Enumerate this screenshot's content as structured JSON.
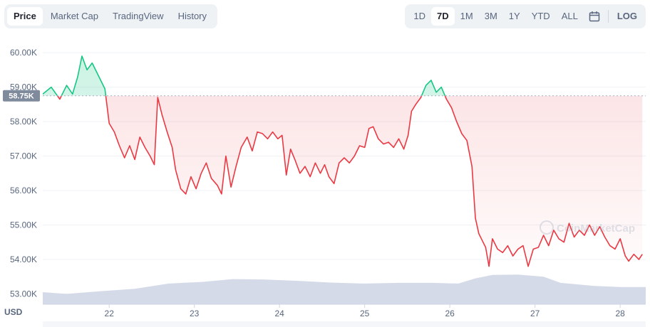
{
  "tabs": [
    "Price",
    "Market Cap",
    "TradingView",
    "History"
  ],
  "active_tab": "Price",
  "ranges": [
    "1D",
    "7D",
    "1M",
    "3M",
    "1Y",
    "YTD",
    "ALL"
  ],
  "active_range": "7D",
  "calendar_icon": "calendar-icon",
  "log_label": "LOG",
  "currency_label": "USD",
  "watermark": "CoinMarketCap",
  "colors": {
    "up": "#16c784",
    "down": "#ea3943",
    "volume": "#cfd6e4",
    "grid": "#eff2f5",
    "text": "#58667e"
  },
  "chart_data": {
    "type": "line",
    "ylim": [
      52700,
      60600
    ],
    "y_ticks": [
      {
        "value": 60000,
        "label": "60.00K"
      },
      {
        "value": 59000,
        "label": "59.00K"
      },
      {
        "value": 58000,
        "label": "58.00K"
      },
      {
        "value": 57000,
        "label": "57.00K"
      },
      {
        "value": 56000,
        "label": "56.00K"
      },
      {
        "value": 55000,
        "label": "55.00K"
      },
      {
        "value": 54000,
        "label": "54.00K"
      },
      {
        "value": 53000,
        "label": "53.00K"
      }
    ],
    "x_ticks": [
      {
        "value": 22,
        "label": "22"
      },
      {
        "value": 23,
        "label": "23"
      },
      {
        "value": 24,
        "label": "24"
      },
      {
        "value": 25,
        "label": "25"
      },
      {
        "value": 26,
        "label": "26"
      },
      {
        "value": 27,
        "label": "27"
      },
      {
        "value": 28,
        "label": "28"
      }
    ],
    "xlim": [
      21.22,
      28.3
    ],
    "reference_value": 58750,
    "reference_label": "58.75K",
    "price": [
      [
        21.22,
        58800
      ],
      [
        21.32,
        59000
      ],
      [
        21.42,
        58650
      ],
      [
        21.5,
        59050
      ],
      [
        21.57,
        58800
      ],
      [
        21.63,
        59300
      ],
      [
        21.68,
        59900
      ],
      [
        21.74,
        59500
      ],
      [
        21.8,
        59700
      ],
      [
        21.87,
        59350
      ],
      [
        21.95,
        58950
      ],
      [
        22.0,
        57950
      ],
      [
        22.06,
        57700
      ],
      [
        22.12,
        57300
      ],
      [
        22.18,
        56950
      ],
      [
        22.24,
        57300
      ],
      [
        22.3,
        56900
      ],
      [
        22.36,
        57550
      ],
      [
        22.42,
        57250
      ],
      [
        22.48,
        57000
      ],
      [
        22.53,
        56750
      ],
      [
        22.57,
        58700
      ],
      [
        22.62,
        58200
      ],
      [
        22.68,
        57700
      ],
      [
        22.74,
        57250
      ],
      [
        22.78,
        56600
      ],
      [
        22.84,
        56050
      ],
      [
        22.9,
        55900
      ],
      [
        22.96,
        56400
      ],
      [
        23.02,
        56050
      ],
      [
        23.08,
        56500
      ],
      [
        23.14,
        56800
      ],
      [
        23.2,
        56350
      ],
      [
        23.27,
        56150
      ],
      [
        23.32,
        55900
      ],
      [
        23.37,
        57000
      ],
      [
        23.43,
        56100
      ],
      [
        23.49,
        56700
      ],
      [
        23.55,
        57250
      ],
      [
        23.62,
        57550
      ],
      [
        23.68,
        57150
      ],
      [
        23.74,
        57700
      ],
      [
        23.8,
        57650
      ],
      [
        23.86,
        57500
      ],
      [
        23.92,
        57700
      ],
      [
        23.98,
        57500
      ],
      [
        24.03,
        57600
      ],
      [
        24.08,
        56450
      ],
      [
        24.13,
        57200
      ],
      [
        24.18,
        56900
      ],
      [
        24.24,
        56500
      ],
      [
        24.3,
        56700
      ],
      [
        24.36,
        56400
      ],
      [
        24.42,
        56800
      ],
      [
        24.48,
        56500
      ],
      [
        24.53,
        56750
      ],
      [
        24.58,
        56400
      ],
      [
        24.64,
        56200
      ],
      [
        24.7,
        56800
      ],
      [
        24.76,
        56950
      ],
      [
        24.82,
        56800
      ],
      [
        24.88,
        57000
      ],
      [
        24.94,
        57300
      ],
      [
        25.0,
        57250
      ],
      [
        25.05,
        57800
      ],
      [
        25.1,
        57850
      ],
      [
        25.16,
        57500
      ],
      [
        25.22,
        57350
      ],
      [
        25.28,
        57400
      ],
      [
        25.34,
        57250
      ],
      [
        25.4,
        57500
      ],
      [
        25.46,
        57200
      ],
      [
        25.51,
        57600
      ],
      [
        25.55,
        58300
      ],
      [
        25.6,
        58500
      ],
      [
        25.66,
        58700
      ],
      [
        25.72,
        59050
      ],
      [
        25.78,
        59200
      ],
      [
        25.84,
        58850
      ],
      [
        25.9,
        59000
      ],
      [
        25.96,
        58650
      ],
      [
        26.02,
        58400
      ],
      [
        26.08,
        58000
      ],
      [
        26.14,
        57650
      ],
      [
        26.2,
        57450
      ],
      [
        26.26,
        56700
      ],
      [
        26.3,
        55200
      ],
      [
        26.34,
        54750
      ],
      [
        26.38,
        54550
      ],
      [
        26.42,
        54350
      ],
      [
        26.46,
        53800
      ],
      [
        26.5,
        54600
      ],
      [
        26.56,
        54300
      ],
      [
        26.62,
        54200
      ],
      [
        26.68,
        54400
      ],
      [
        26.74,
        54100
      ],
      [
        26.8,
        54300
      ],
      [
        26.86,
        54400
      ],
      [
        26.92,
        53800
      ],
      [
        26.98,
        54300
      ],
      [
        27.04,
        54350
      ],
      [
        27.1,
        54700
      ],
      [
        27.16,
        54400
      ],
      [
        27.22,
        54850
      ],
      [
        27.28,
        54600
      ],
      [
        27.34,
        54500
      ],
      [
        27.4,
        55050
      ],
      [
        27.46,
        54650
      ],
      [
        27.52,
        54850
      ],
      [
        27.58,
        54700
      ],
      [
        27.64,
        55000
      ],
      [
        27.7,
        54700
      ],
      [
        27.76,
        54950
      ],
      [
        27.82,
        54650
      ],
      [
        27.88,
        54400
      ],
      [
        27.94,
        54300
      ],
      [
        28.0,
        54600
      ],
      [
        28.06,
        54100
      ],
      [
        28.1,
        53950
      ],
      [
        28.16,
        54150
      ],
      [
        28.22,
        54000
      ],
      [
        28.26,
        54150
      ]
    ],
    "volume": [
      [
        21.22,
        53050
      ],
      [
        21.5,
        53000
      ],
      [
        21.9,
        53080
      ],
      [
        22.3,
        53150
      ],
      [
        22.7,
        53300
      ],
      [
        23.1,
        53350
      ],
      [
        23.45,
        53430
      ],
      [
        23.8,
        53420
      ],
      [
        24.2,
        53380
      ],
      [
        24.6,
        53330
      ],
      [
        25.0,
        53300
      ],
      [
        25.4,
        53320
      ],
      [
        25.8,
        53320
      ],
      [
        26.1,
        53300
      ],
      [
        26.3,
        53450
      ],
      [
        26.5,
        53550
      ],
      [
        26.8,
        53560
      ],
      [
        27.1,
        53500
      ],
      [
        27.3,
        53320
      ],
      [
        27.7,
        53230
      ],
      [
        28.0,
        53200
      ],
      [
        28.3,
        53200
      ]
    ]
  }
}
